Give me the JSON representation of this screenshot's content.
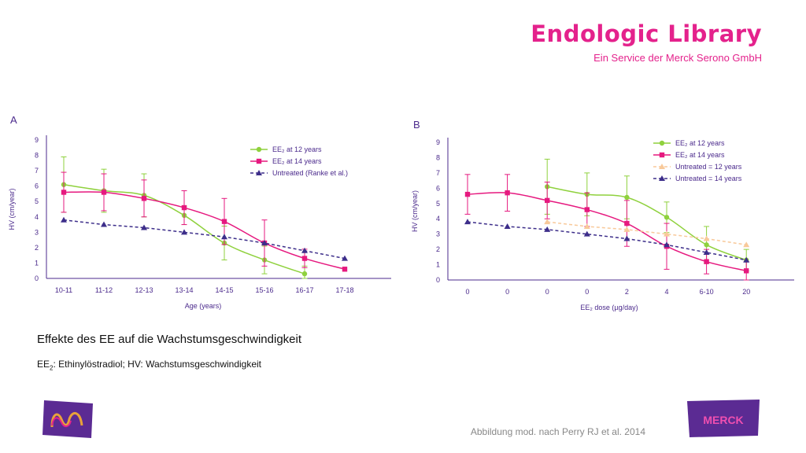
{
  "header": {
    "brand": "Endologic Library",
    "subtitle": "Ein Service der Merck Serono GmbH"
  },
  "colors": {
    "brand": "#e4228c",
    "axis": "#4b2a8c",
    "green": "#8fd13d",
    "pink": "#e6197f",
    "navy": "#3d2e8a",
    "peach": "#f8c99a",
    "logo_purple": "#5b2b93",
    "footnote": "#888888"
  },
  "caption": {
    "title": "Effekte des EE auf die Wachstumsgeschwindigkeit",
    "abbr_prefix": "EE",
    "abbr_sub": "2",
    "abbr_rest": ": Ethinylöstradiol; HV: Wachstumsgeschwindigkeit"
  },
  "footnote": "Abbildung mod. nach Perry RJ et al. 2014",
  "logos": {
    "left": "merck-m-logo",
    "right_text": "MERCK"
  },
  "chart_data": [
    {
      "panel": "A",
      "type": "line",
      "xlabel": "Age (years)",
      "ylabel": "HV (cm/year)",
      "ylim": [
        0,
        9
      ],
      "yticks": [
        "0",
        "1",
        "2",
        "3",
        "4",
        "5",
        "6",
        "7",
        "8",
        "9"
      ],
      "categories": [
        "10-11",
        "11-12",
        "12-13",
        "13-14",
        "14-15",
        "15-16",
        "16-17",
        "17-18"
      ],
      "legend_position": "top-right",
      "series": [
        {
          "name": "EE₂ at 12 years",
          "marker": "circle",
          "color": "#8fd13d",
          "dashed": false,
          "values": [
            6.1,
            5.7,
            5.4,
            4.1,
            2.3,
            1.2,
            0.3,
            null
          ],
          "error": [
            1.8,
            1.4,
            1.4,
            0.6,
            1.1,
            0.9,
            0.5,
            null
          ]
        },
        {
          "name": "EE₂ at 14 years",
          "marker": "square",
          "color": "#e6197f",
          "dashed": false,
          "values": [
            5.6,
            5.6,
            5.2,
            4.6,
            3.7,
            2.3,
            1.3,
            0.6
          ],
          "error": [
            1.3,
            1.2,
            1.2,
            1.1,
            1.5,
            1.5,
            0.6,
            null
          ]
        },
        {
          "name": "Untreated (Ranke et al.)",
          "marker": "triangle",
          "color": "#3d2e8a",
          "dashed": true,
          "values": [
            3.8,
            3.5,
            3.3,
            3.0,
            2.7,
            2.3,
            1.8,
            1.3
          ],
          "error": [
            null,
            null,
            null,
            null,
            null,
            null,
            null,
            null
          ]
        }
      ]
    },
    {
      "panel": "B",
      "type": "line",
      "xlabel": "EE₂ dose (µg/day)",
      "ylabel": "HV (cm/year)",
      "ylim": [
        0,
        9
      ],
      "yticks": [
        "0",
        "1",
        "2",
        "3",
        "4",
        "5",
        "6",
        "7",
        "8",
        "9"
      ],
      "categories": [
        "0",
        "0",
        "0",
        "0",
        "2",
        "4",
        "6-10",
        "20"
      ],
      "legend_position": "top-right",
      "series": [
        {
          "name": "EE₂ at 12 years",
          "marker": "circle",
          "color": "#8fd13d",
          "dashed": false,
          "values": [
            null,
            null,
            6.1,
            5.6,
            5.4,
            4.1,
            2.3,
            1.3
          ],
          "error": [
            null,
            null,
            1.8,
            1.4,
            1.4,
            1.0,
            1.2,
            0.7
          ]
        },
        {
          "name": "EE₂ at 14 years",
          "marker": "square",
          "color": "#e6197f",
          "dashed": false,
          "values": [
            5.6,
            5.7,
            5.2,
            4.6,
            3.7,
            2.2,
            1.2,
            0.6
          ],
          "error": [
            1.3,
            1.2,
            1.2,
            1.1,
            1.5,
            1.5,
            0.8,
            0.6
          ]
        },
        {
          "name": "Untreated = 12 years",
          "marker": "triangle",
          "color": "#f8c99a",
          "dashed": true,
          "values": [
            null,
            null,
            3.8,
            3.5,
            3.3,
            3.0,
            2.7,
            2.3
          ],
          "error": [
            null,
            null,
            null,
            null,
            null,
            null,
            null,
            null
          ]
        },
        {
          "name": "Untreated = 14 years",
          "marker": "triangle",
          "color": "#3d2e8a",
          "dashed": true,
          "values": [
            3.8,
            3.5,
            3.3,
            3.0,
            2.7,
            2.3,
            1.8,
            1.3
          ],
          "error": [
            null,
            null,
            null,
            null,
            null,
            null,
            null,
            null
          ]
        }
      ]
    }
  ]
}
